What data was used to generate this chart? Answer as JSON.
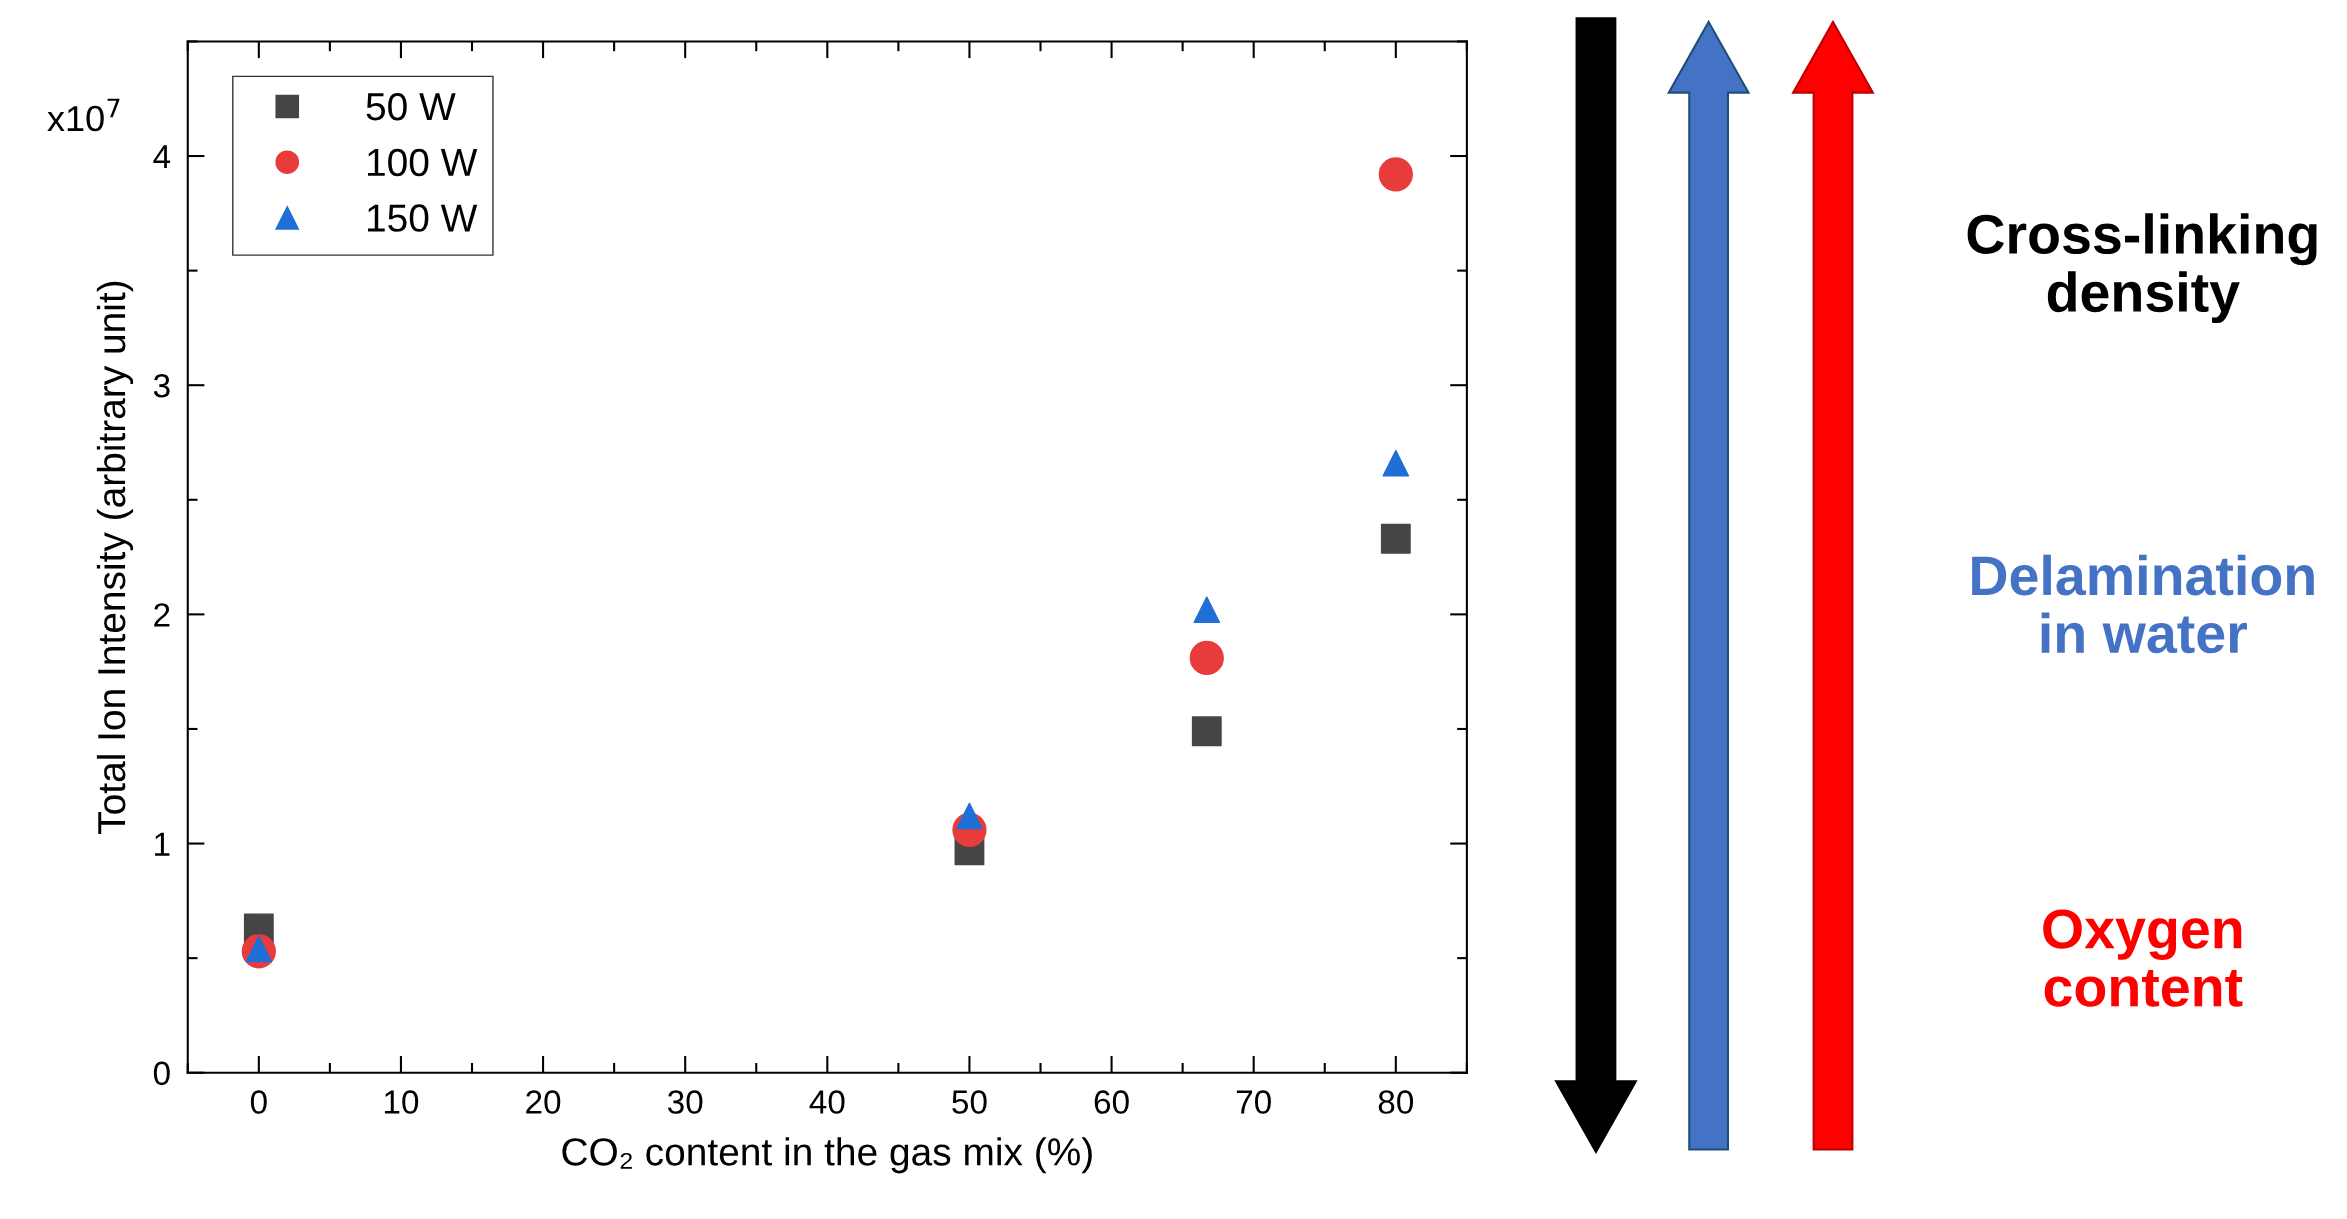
{
  "chart_data": {
    "type": "scatter",
    "xlabel": "CO₂ content in the gas mix (%)",
    "ylabel": "Total Ion Intensity (arbitrary unit)",
    "x": [
      0,
      50,
      66.7,
      80
    ],
    "series": [
      {
        "name": "50 W",
        "color": "#454545",
        "marker": "square",
        "values": [
          0.63,
          0.97,
          1.49,
          2.33
        ]
      },
      {
        "name": "100 W",
        "color": "#e83c3c",
        "marker": "circle",
        "values": [
          0.53,
          1.06,
          1.81,
          3.92
        ]
      },
      {
        "name": "150 W",
        "color": "#1f6fd6",
        "marker": "triangle",
        "values": [
          0.54,
          1.12,
          2.02,
          2.66
        ]
      }
    ],
    "xlim": [
      -5,
      85
    ],
    "xticks": [
      0,
      10,
      20,
      30,
      40,
      50,
      60,
      70,
      80
    ],
    "ylim": [
      0,
      4.5
    ],
    "yticks": [
      0,
      1,
      2,
      3,
      4
    ],
    "grid": false,
    "legend": "top left",
    "annotations": [
      "x10$^{7}$",
      "Cross-linking\ndensity",
      "Delamination\nin water",
      "Oxygen\ncontent"
    ]
  }
}
